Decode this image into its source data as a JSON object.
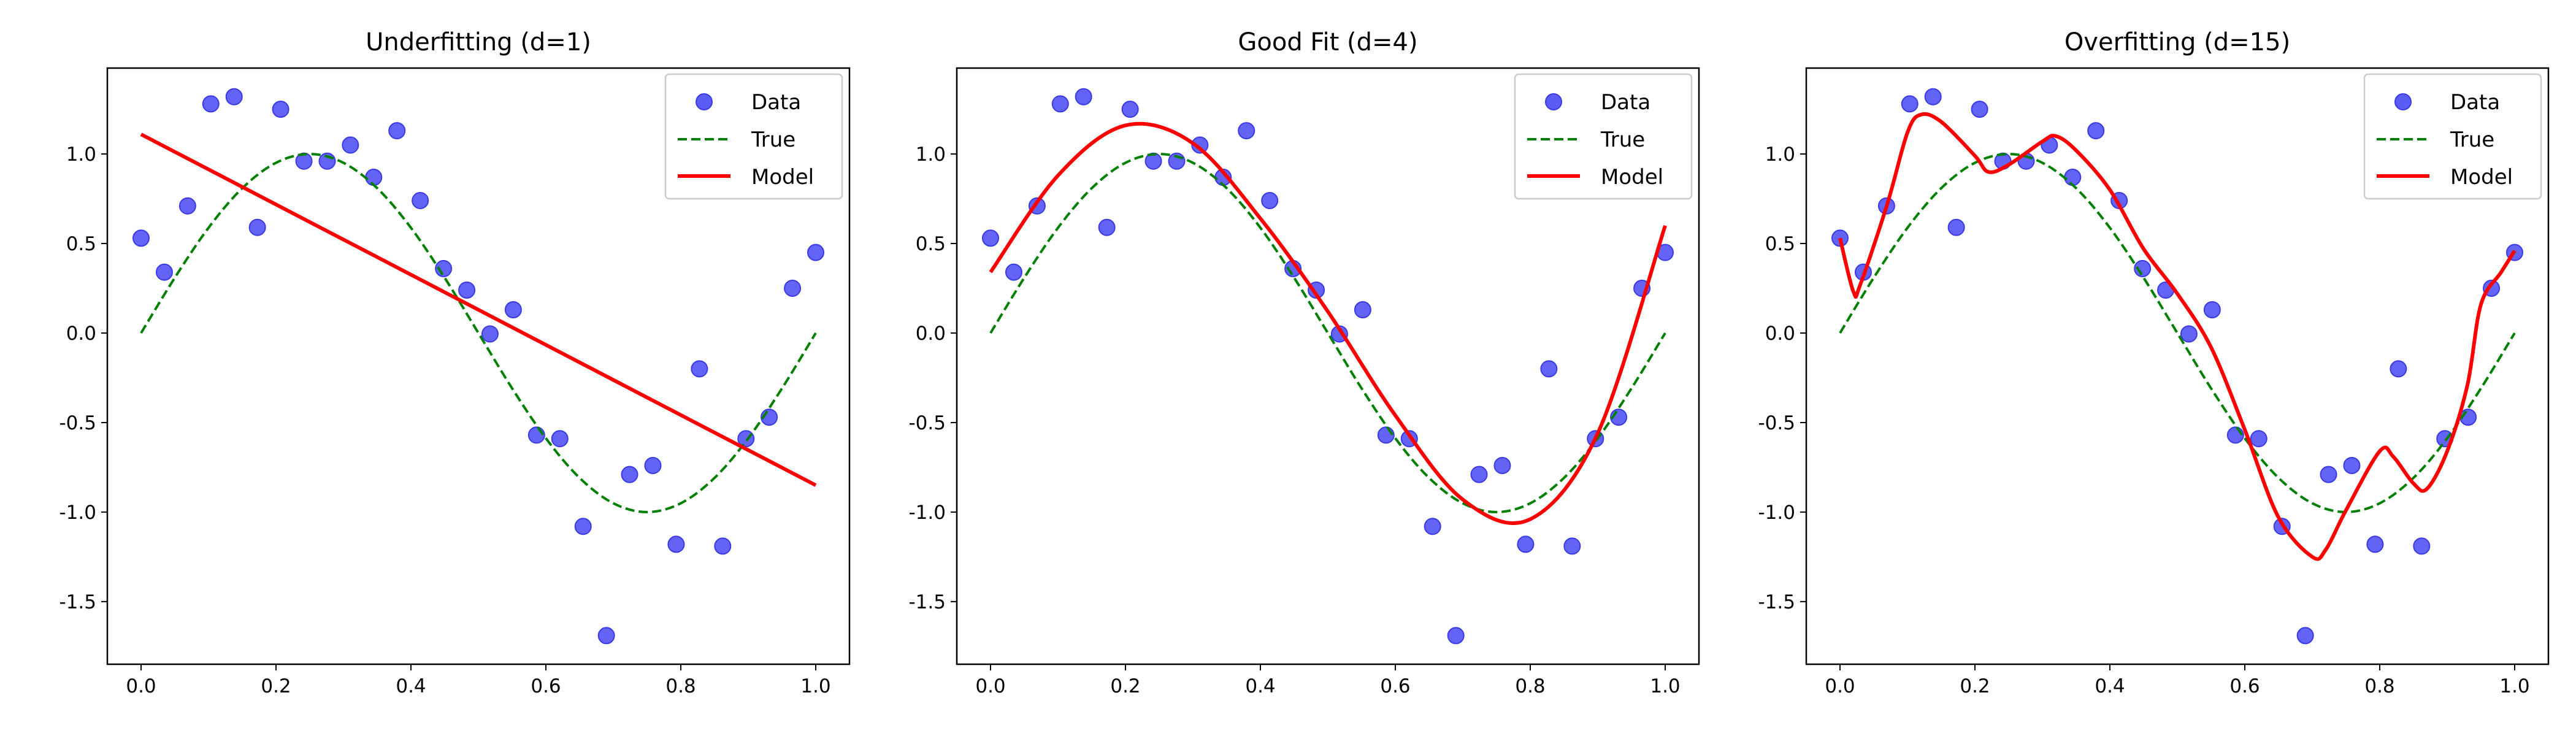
{
  "chart_data": [
    {
      "type": "line",
      "title": "Underfitting (d=1)",
      "xlim": [
        -0.05,
        1.05
      ],
      "ylim": [
        -1.85,
        1.48
      ],
      "xticks": [
        "0.0",
        "0.2",
        "0.4",
        "0.6",
        "0.8",
        "1.0"
      ],
      "yticks": [
        "-1.5",
        "-1.0",
        "-0.5",
        "0.0",
        "0.5",
        "1.0"
      ],
      "legend": {
        "placement": "top-right",
        "entries": [
          "Data",
          "True",
          "Model"
        ]
      },
      "model": {
        "x": [
          0,
          1
        ],
        "y": [
          1.11,
          -0.85
        ]
      }
    },
    {
      "type": "line",
      "title": "Good Fit (d=4)",
      "xlim": [
        -0.05,
        1.05
      ],
      "ylim": [
        -1.85,
        1.48
      ],
      "xticks": [
        "0.0",
        "0.2",
        "0.4",
        "0.6",
        "0.8",
        "1.0"
      ],
      "yticks": [
        "-1.5",
        "-1.0",
        "-0.5",
        "0.0",
        "0.5",
        "1.0"
      ],
      "legend": {
        "placement": "top-right",
        "entries": [
          "Data",
          "True",
          "Model"
        ]
      },
      "model": {
        "x": [
          0,
          0.1,
          0.2,
          0.3,
          0.4,
          0.5,
          0.6,
          0.7,
          0.8,
          0.9,
          1.0
        ],
        "y": [
          0.34,
          0.88,
          1.16,
          1.06,
          0.64,
          0.12,
          -0.46,
          -0.93,
          -1.04,
          -0.56,
          0.6
        ]
      }
    },
    {
      "type": "line",
      "title": "Overfitting (d=15)",
      "xlim": [
        -0.05,
        1.05
      ],
      "ylim": [
        -1.85,
        1.48
      ],
      "xticks": [
        "0.0",
        "0.2",
        "0.4",
        "0.6",
        "0.8",
        "1.0"
      ],
      "yticks": [
        "-1.5",
        "-1.0",
        "-0.5",
        "0.0",
        "0.5",
        "1.0"
      ],
      "legend": {
        "placement": "top-right",
        "entries": [
          "Data",
          "True",
          "Model"
        ]
      },
      "model": {
        "x": [
          0,
          0.02,
          0.03,
          0.07,
          0.1,
          0.12,
          0.15,
          0.2,
          0.22,
          0.25,
          0.3,
          0.32,
          0.35,
          0.4,
          0.45,
          0.5,
          0.55,
          0.6,
          0.65,
          0.7,
          0.72,
          0.75,
          0.8,
          0.82,
          0.85,
          0.87,
          0.9,
          0.93,
          0.95,
          0.98,
          1.0
        ],
        "y": [
          0.53,
          0.23,
          0.27,
          0.72,
          1.12,
          1.22,
          1.18,
          0.99,
          0.9,
          0.94,
          1.07,
          1.1,
          1.02,
          0.8,
          0.47,
          0.22,
          -0.08,
          -0.54,
          -1.03,
          -1.25,
          -1.21,
          -0.99,
          -0.66,
          -0.69,
          -0.84,
          -0.87,
          -0.66,
          -0.29,
          0.16,
          0.34,
          0.46
        ]
      }
    }
  ],
  "data_points": {
    "x": [
      0,
      0.0345,
      0.069,
      0.1034,
      0.1379,
      0.1724,
      0.2069,
      0.2414,
      0.2759,
      0.3103,
      0.3448,
      0.3793,
      0.4138,
      0.4483,
      0.4828,
      0.5172,
      0.5517,
      0.5862,
      0.6207,
      0.6552,
      0.6897,
      0.7241,
      0.7586,
      0.7931,
      0.8276,
      0.8621,
      0.8966,
      0.931,
      0.9655,
      1.0
    ],
    "y": [
      0.53,
      0.34,
      0.71,
      1.28,
      1.32,
      0.59,
      1.25,
      0.96,
      0.96,
      1.05,
      0.87,
      1.13,
      0.74,
      0.36,
      0.24,
      -0.005,
      0.13,
      -0.57,
      -0.59,
      -1.08,
      -1.69,
      -0.79,
      -0.74,
      -1.18,
      -0.2,
      -1.19,
      -0.59,
      -0.47,
      0.25,
      0.45
    ]
  },
  "true_curve": {
    "x": [
      0,
      0.05,
      0.1,
      0.15,
      0.2,
      0.25,
      0.3,
      0.35,
      0.4,
      0.45,
      0.5,
      0.55,
      0.6,
      0.65,
      0.7,
      0.75,
      0.8,
      0.85,
      0.9,
      0.95,
      1.0
    ],
    "y": [
      0,
      0.309,
      0.588,
      0.809,
      0.951,
      1,
      0.951,
      0.809,
      0.588,
      0.309,
      0,
      -0.309,
      -0.588,
      -0.809,
      -0.951,
      -1,
      -0.951,
      -0.809,
      -0.588,
      -0.309,
      0
    ]
  },
  "colors": {
    "data": "#5b5bf5",
    "data_edge": "#3a3ae6",
    "true": "#008000",
    "model": "#ff0000"
  }
}
